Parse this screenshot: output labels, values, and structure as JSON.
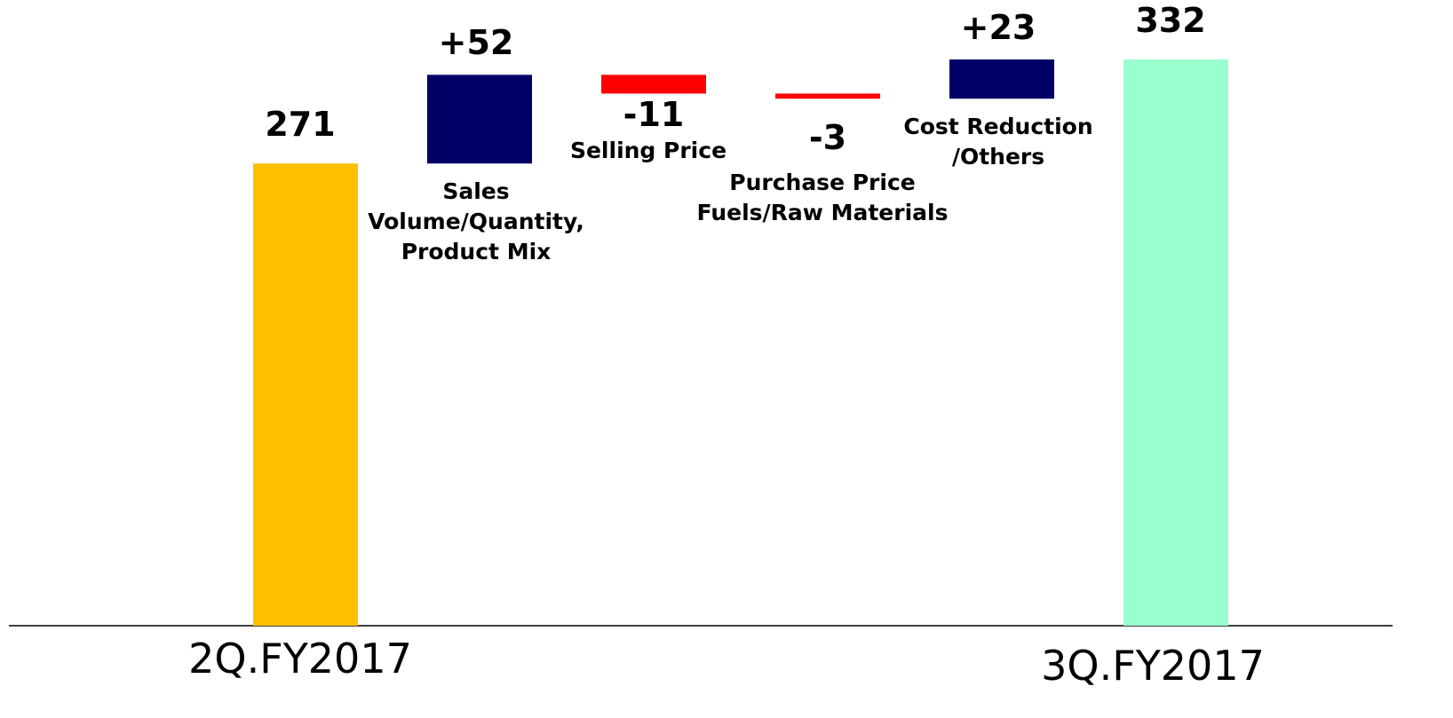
{
  "chart_data": {
    "type": "waterfall",
    "categories": [
      "2Q.FY2017",
      "Sales\nVolume/Quantity,\nProduct Mix",
      "Selling Price",
      "Purchase Price\nFuels/Raw Materials",
      "Cost Reduction\n/Others",
      "3Q.FY2017"
    ],
    "values": [
      271,
      52,
      -11,
      -3,
      23,
      332
    ],
    "value_labels": [
      "271",
      "+52",
      "-11",
      "-3",
      "+23",
      "332"
    ],
    "totals": [
      true,
      false,
      false,
      false,
      false,
      true
    ],
    "colors": [
      "#ffc000",
      "#000066",
      "#ff0000",
      "#ff0000",
      "#000066",
      "#99ffcc"
    ],
    "ylim": [
      0,
      332
    ]
  }
}
